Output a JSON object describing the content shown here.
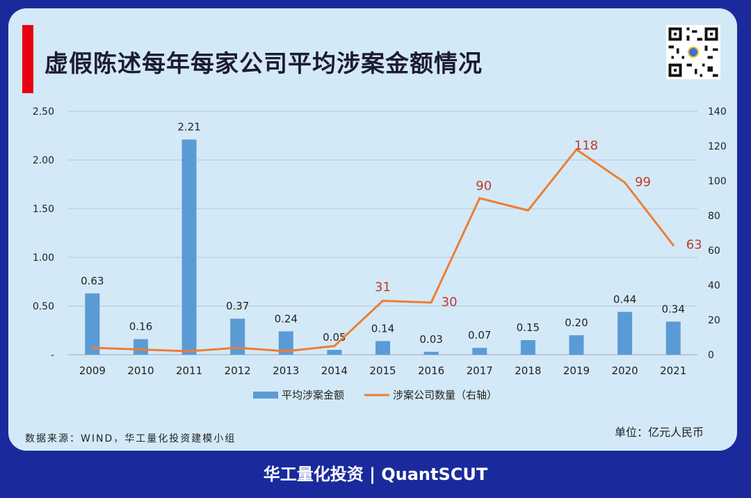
{
  "header": {
    "title": "虚假陈述每年每家公司平均涉案金额情况",
    "accent_color": "#e60012"
  },
  "qr_code": {
    "icon": "qr-code-icon"
  },
  "chart_data": {
    "type": "bar+line",
    "categories": [
      "2009",
      "2010",
      "2011",
      "2012",
      "2013",
      "2014",
      "2015",
      "2016",
      "2017",
      "2018",
      "2019",
      "2020",
      "2021"
    ],
    "series": [
      {
        "name": "平均涉案金额",
        "type": "bar",
        "axis": "left",
        "color": "#5b9bd5",
        "values": [
          0.63,
          0.16,
          2.21,
          0.37,
          0.24,
          0.05,
          0.14,
          0.03,
          0.07,
          0.15,
          0.2,
          0.44,
          0.34
        ],
        "labels": [
          "0.63",
          "0.16",
          "2.21",
          "0.37",
          "0.24",
          "0.05",
          "0.14",
          "0.03",
          "0.07",
          "0.15",
          "0.20",
          "0.44",
          "0.34"
        ]
      },
      {
        "name": "涉案公司数量（右轴）",
        "type": "line",
        "axis": "right",
        "color": "#ed7d31",
        "label_color": "#c0392b",
        "values": [
          4,
          3,
          2,
          4,
          2,
          5,
          31,
          30,
          90,
          83,
          118,
          99,
          63
        ],
        "labels": [
          "",
          "",
          "",
          "",
          "",
          "",
          "31",
          "30",
          "90",
          "",
          "118",
          "99",
          "63"
        ]
      }
    ],
    "y_left": {
      "ylim": [
        0,
        2.5
      ],
      "ticks": [
        "-",
        "0.50",
        "1.00",
        "1.50",
        "2.00",
        "2.50"
      ]
    },
    "y_right": {
      "ylim": [
        0,
        140
      ],
      "ticks": [
        "0",
        "20",
        "40",
        "60",
        "80",
        "100",
        "120",
        "140"
      ]
    },
    "grid": true,
    "legend_position": "bottom"
  },
  "notes": {
    "source": "数据来源：WIND，华工量化投资建模小组",
    "unit": "单位：亿元人民币"
  },
  "footer": {
    "text": "华工量化投资 | QuantSCUT"
  }
}
